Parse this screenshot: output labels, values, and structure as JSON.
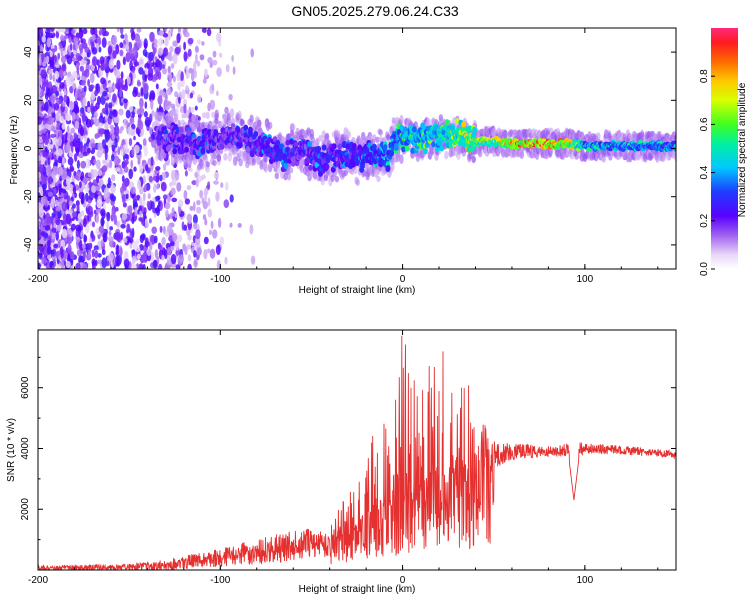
{
  "title": "GN05.2025.279.06.24.C33",
  "chart_data": [
    {
      "type": "heatmap",
      "panel": "spectrogram",
      "xlabel": "Height of straight line (km)",
      "ylabel": "Frequency (Hz)",
      "xlim": [
        -200,
        150
      ],
      "ylim": [
        -50,
        50
      ],
      "xticks": [
        -200,
        -100,
        0,
        100
      ],
      "yticks": [
        -40,
        -20,
        0,
        20,
        40
      ],
      "colorbar": {
        "label": "Normalized spectral amplitude",
        "range": [
          0,
          1
        ],
        "ticks": [
          "0.0",
          "0.2",
          "0.4",
          "0.6",
          "0.8"
        ],
        "tick_values": [
          0.0,
          0.2,
          0.4,
          0.6,
          0.8
        ],
        "colormap": "rainbow (white, violet, blue, cyan, green, yellow, orange, red)"
      },
      "ridge": {
        "x": [
          -130,
          -110,
          -95,
          -80,
          -65,
          -55,
          -45,
          -35,
          -25,
          -15,
          -8,
          -5,
          0,
          10,
          20,
          30,
          40,
          50,
          60,
          70,
          80,
          90,
          100,
          120,
          150
        ],
        "freq": [
          5,
          2,
          6,
          2,
          -3,
          0,
          -5,
          -3,
          -4,
          -2,
          -4,
          3,
          5,
          4,
          5,
          6,
          3,
          3,
          2,
          2,
          2,
          2,
          1,
          1,
          1
        ],
        "amplitude": [
          0.3,
          0.35,
          0.3,
          0.35,
          0.4,
          0.3,
          0.4,
          0.35,
          0.4,
          0.45,
          0.45,
          0.5,
          0.6,
          0.6,
          0.65,
          0.7,
          0.8,
          0.75,
          0.9,
          0.95,
          0.95,
          0.9,
          0.55,
          0.5,
          0.5
        ]
      }
    },
    {
      "type": "line",
      "panel": "snr",
      "xlabel": "Height of straight line (km)",
      "ylabel": "SNR (10 * v/v)",
      "xlim": [
        -200,
        150
      ],
      "ylim": [
        0,
        7900
      ],
      "xticks": [
        -200,
        -100,
        0,
        100
      ],
      "yticks": [
        2000,
        4000,
        6000
      ],
      "color": "#e53030",
      "envelope": {
        "x": [
          -200,
          -150,
          -130,
          -115,
          -100,
          -90,
          -80,
          -70,
          -60,
          -50,
          -40,
          -30,
          -25,
          -20,
          -15,
          -10,
          -5,
          0,
          5,
          10,
          15,
          20,
          25,
          30,
          35,
          40,
          45,
          50,
          60,
          70,
          80,
          90,
          95,
          100,
          120,
          150
        ],
        "base": [
          60,
          100,
          150,
          300,
          400,
          500,
          600,
          700,
          800,
          900,
          900,
          1200,
          1500,
          1800,
          2000,
          2200,
          2300,
          2400,
          2500,
          2600,
          2800,
          2900,
          3000,
          3100,
          3300,
          3500,
          3700,
          3800,
          3900,
          3900,
          3900,
          3950,
          3900,
          4000,
          3950,
          3800
        ],
        "peak": [
          200,
          300,
          500,
          700,
          900,
          1100,
          1300,
          1500,
          1600,
          1700,
          1800,
          2500,
          3200,
          4000,
          4600,
          5200,
          6800,
          7900,
          6500,
          7000,
          7200,
          6800,
          7700,
          6700,
          6500,
          5700,
          5200,
          4600,
          4400,
          4300,
          4200,
          4300,
          4500,
          4300,
          4200,
          4000
        ]
      },
      "notable_features": [
        {
          "x": 94,
          "value": 2300,
          "note": "sharp dip"
        }
      ]
    }
  ]
}
